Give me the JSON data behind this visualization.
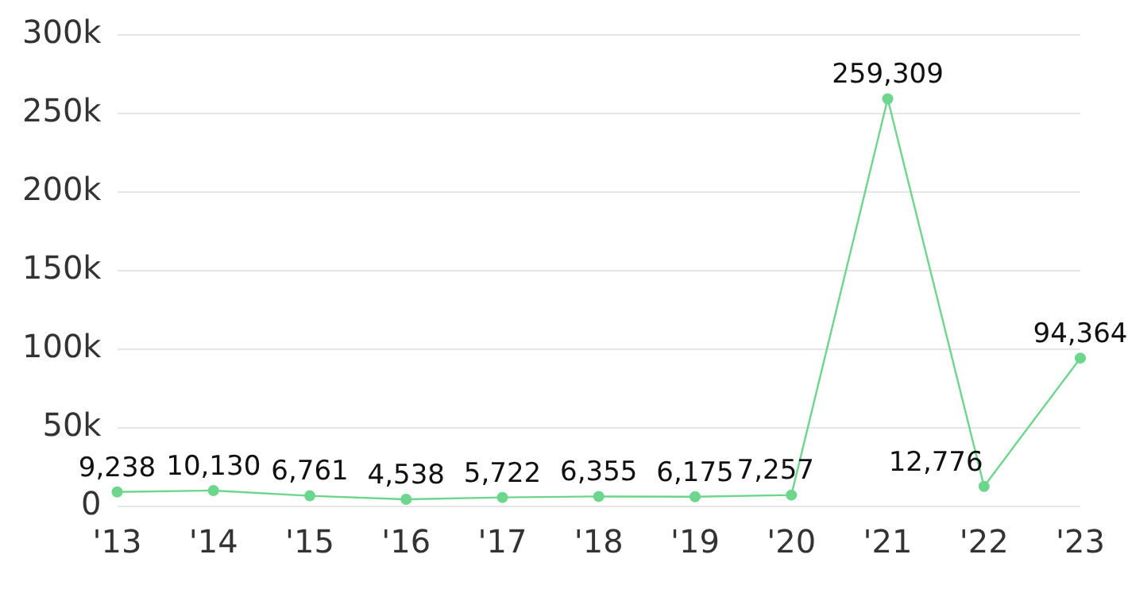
{
  "chart_data": {
    "type": "line",
    "categories": [
      "'13",
      "'14",
      "'15",
      "'16",
      "'17",
      "'18",
      "'19",
      "'20",
      "'21",
      "'22",
      "'23"
    ],
    "values": [
      9238,
      10130,
      6761,
      4538,
      5722,
      6355,
      6175,
      7257,
      259309,
      12776,
      94364
    ],
    "value_labels": [
      "9,238",
      "10,130",
      "6,761",
      "4,538",
      "5,722",
      "6,355",
      "6,175",
      "7,257",
      "259,309",
      "12,776",
      "94,364"
    ],
    "color": "#6cd68c",
    "ylim": [
      0,
      300000
    ],
    "yticks": [
      {
        "value": 0,
        "label": "0"
      },
      {
        "value": 50000,
        "label": "50k"
      },
      {
        "value": 100000,
        "label": "100k"
      },
      {
        "value": 150000,
        "label": "150k"
      },
      {
        "value": 200000,
        "label": "200k"
      },
      {
        "value": 250000,
        "label": "250k"
      },
      {
        "value": 300000,
        "label": "300k"
      }
    ],
    "grid": "y",
    "marker": "circle",
    "line_style": "solid",
    "legend": false
  }
}
